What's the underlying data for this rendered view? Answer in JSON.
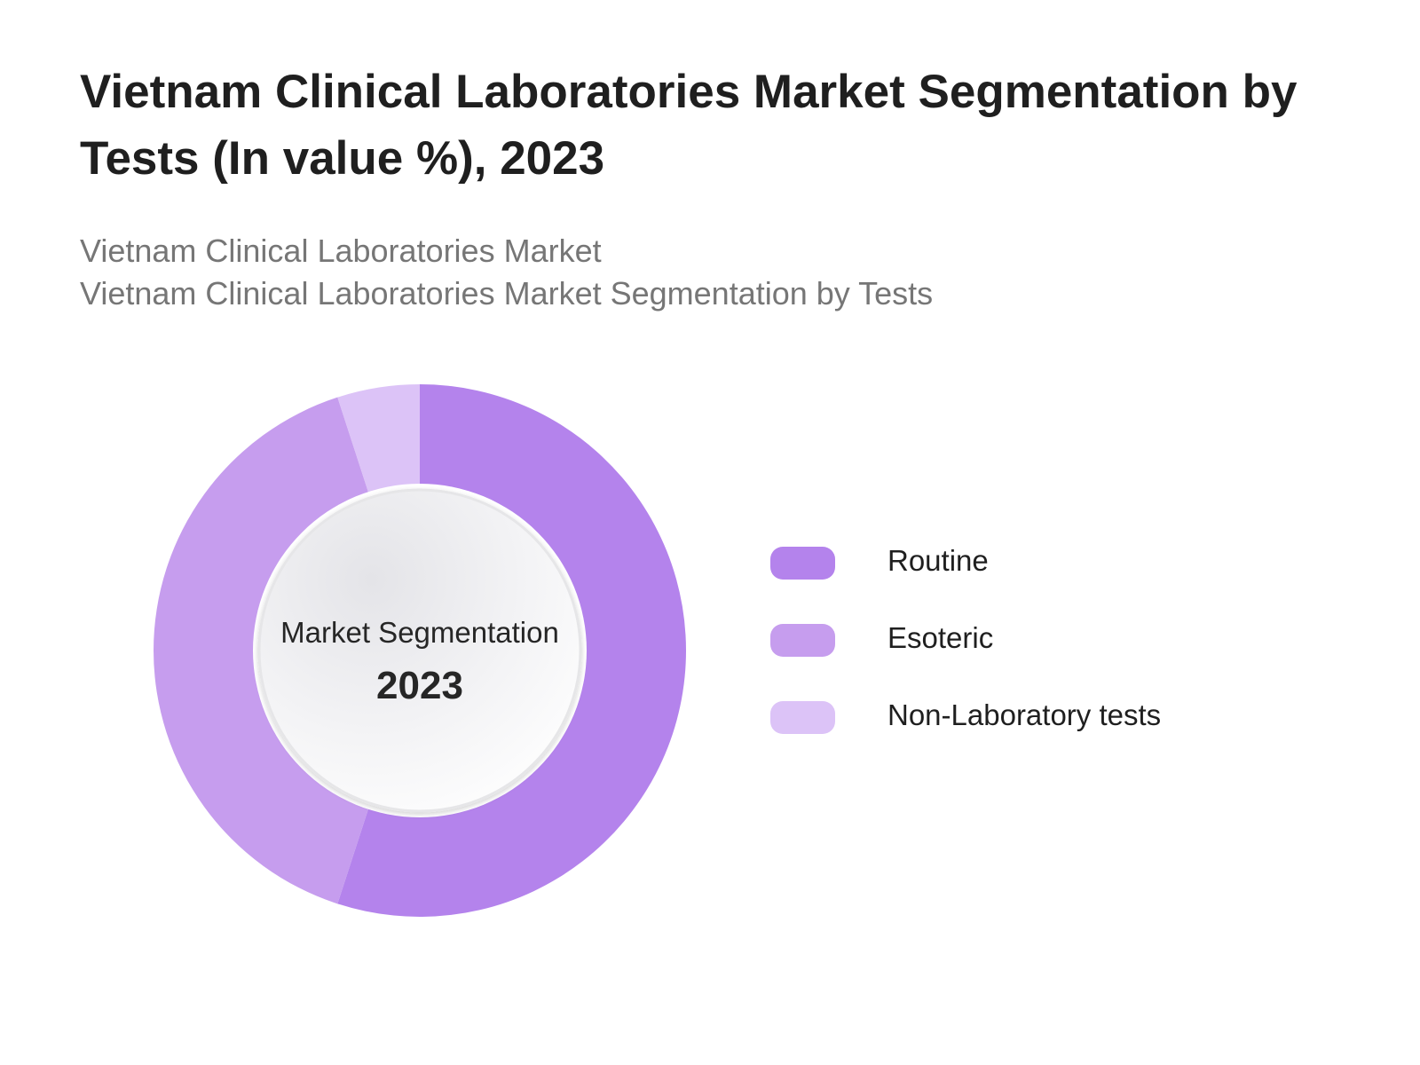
{
  "header": {
    "title": "Vietnam Clinical Laboratories Market Segmentation by Tests (In value %), 2023",
    "subtitle_line1": "Vietnam Clinical Laboratories Market",
    "subtitle_line2": "Vietnam Clinical Laboratories Market Segmentation by Tests"
  },
  "center": {
    "label": "Market Segmentation",
    "year": "2023"
  },
  "chart_data": {
    "type": "pie",
    "title": "Vietnam Clinical Laboratories Market Segmentation by Tests (In value %), 2023",
    "donut": true,
    "start_angle_deg": 0,
    "direction": "clockwise",
    "legend_position": "right",
    "categories": [
      "Routine",
      "Esoteric",
      "Non-Laboratory tests"
    ],
    "values": [
      55,
      40,
      5
    ],
    "colors": [
      "#b483ec",
      "#c69dee",
      "#dcc3f7"
    ]
  }
}
